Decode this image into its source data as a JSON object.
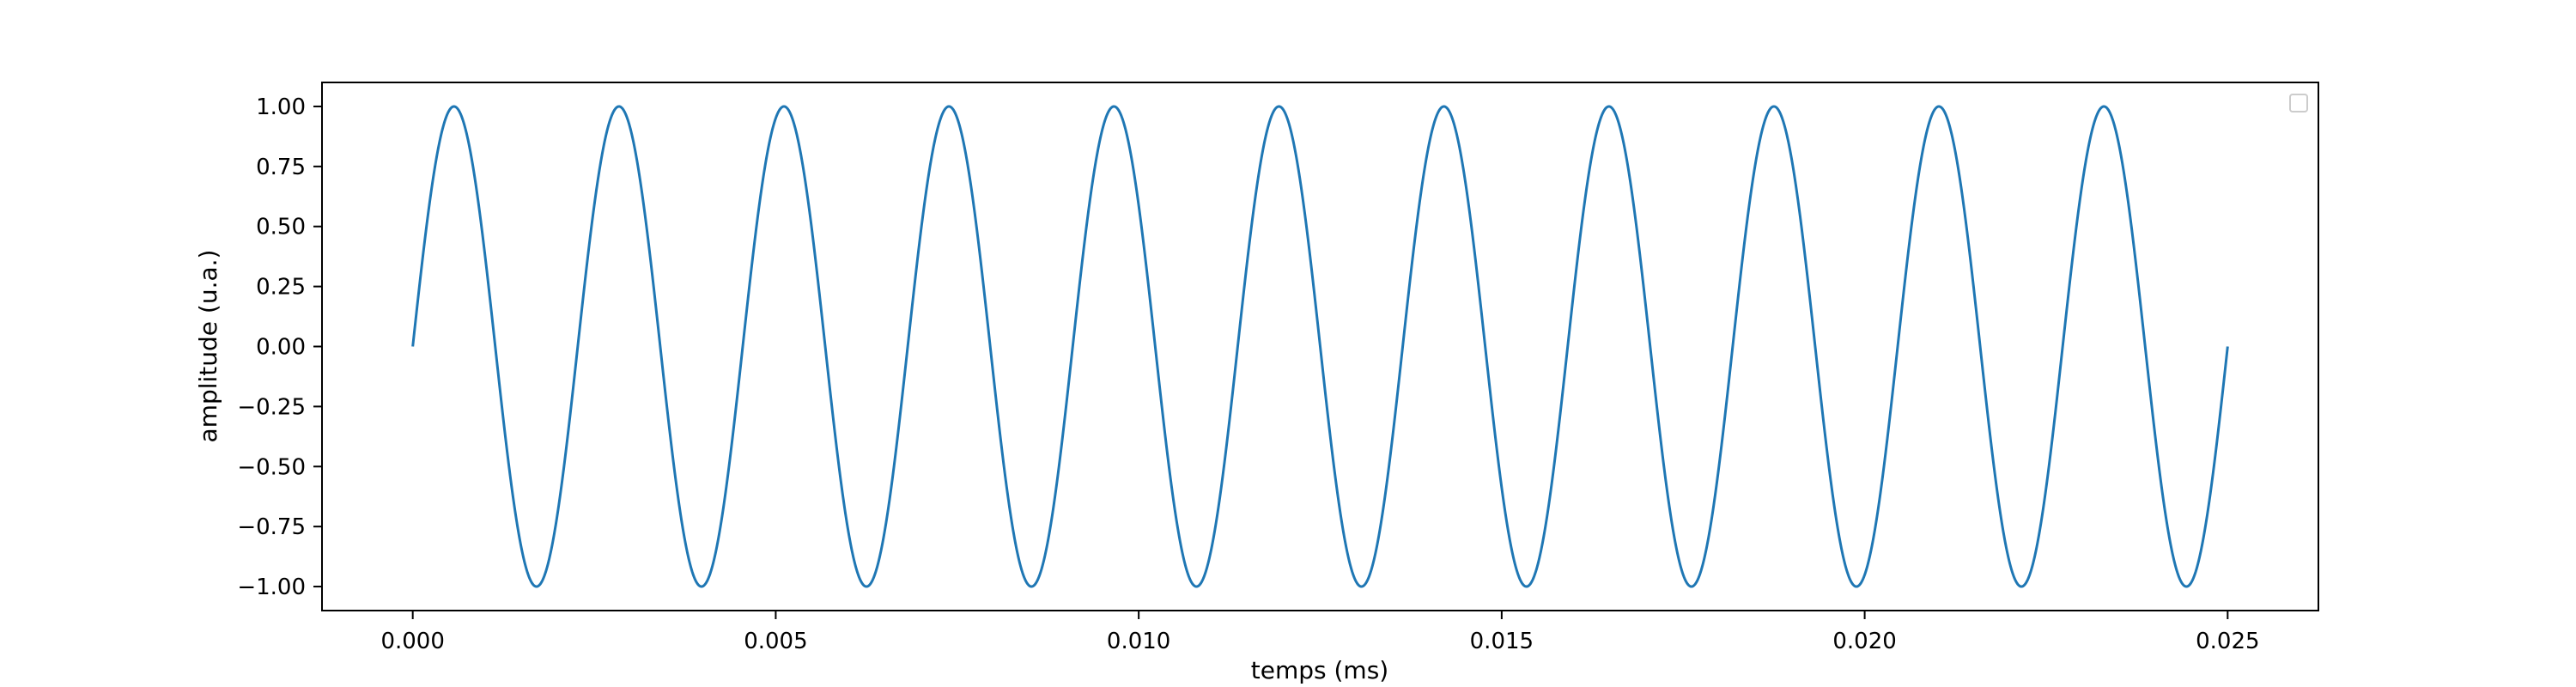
{
  "chart_data": {
    "type": "line",
    "title": "",
    "xlabel": "temps (ms)",
    "ylabel": "amplitude (u.a.)",
    "xlim": [
      -0.00125,
      0.02625
    ],
    "ylim": [
      -1.1,
      1.1
    ],
    "x_ticks": [
      {
        "value": 0.0,
        "label": "0.000"
      },
      {
        "value": 0.005,
        "label": "0.005"
      },
      {
        "value": 0.01,
        "label": "0.010"
      },
      {
        "value": 0.015,
        "label": "0.015"
      },
      {
        "value": 0.02,
        "label": "0.020"
      },
      {
        "value": 0.025,
        "label": "0.025"
      }
    ],
    "y_ticks": [
      {
        "value": 1.0,
        "label": "1.00"
      },
      {
        "value": 0.75,
        "label": "0.75"
      },
      {
        "value": 0.5,
        "label": "0.50"
      },
      {
        "value": 0.25,
        "label": "0.25"
      },
      {
        "value": 0.0,
        "label": "0.00"
      },
      {
        "value": -0.25,
        "label": "−0.25"
      },
      {
        "value": -0.5,
        "label": "−0.50"
      },
      {
        "value": -0.75,
        "label": "−0.75"
      },
      {
        "value": -1.0,
        "label": "−1.00"
      }
    ],
    "grid": false,
    "legend": {
      "placement": "top-right",
      "entries": []
    },
    "series": [
      {
        "function": "sine",
        "amplitude": 1.0,
        "frequency_per_ms": 440,
        "phase": 0,
        "x_start": 0.0,
        "x_end": 0.025,
        "color": "#1f77b4"
      }
    ]
  }
}
